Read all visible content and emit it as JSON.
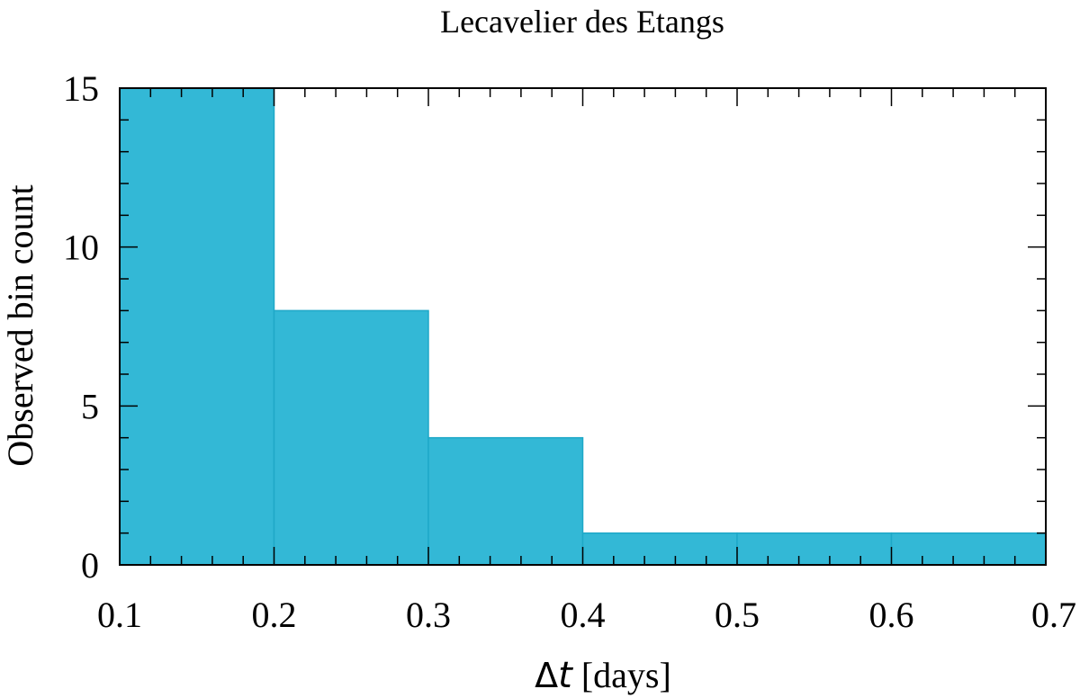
{
  "chart_data": {
    "type": "bar",
    "title": "Lecavelier des Etangs",
    "xlabel_symbol": "Δ",
    "xlabel_var": "t",
    "xlabel_unit": " [days]",
    "ylabel": "Observed bin count",
    "bin_edges": [
      0.1,
      0.2,
      0.3,
      0.4,
      0.5,
      0.6,
      0.7
    ],
    "values": [
      15,
      8,
      4,
      1,
      1,
      1
    ],
    "xlim": [
      0.1,
      0.7
    ],
    "ylim": [
      0,
      15
    ],
    "x_ticks": [
      "0.1",
      "0.2",
      "0.3",
      "0.4",
      "0.5",
      "0.6",
      "0.7"
    ],
    "y_ticks": [
      "0",
      "5",
      "10",
      "15"
    ],
    "bar_color": "#33b8d6",
    "bar_edge_color": "#1ea8c8",
    "grid": false,
    "legend": "none"
  }
}
